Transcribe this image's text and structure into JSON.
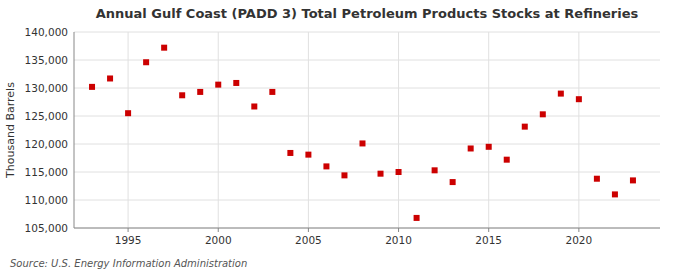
{
  "chart_data": {
    "type": "scatter",
    "title": "Annual Gulf Coast (PADD 3) Total Petroleum Products Stocks at Refineries",
    "y_label": "Thousand Barrels",
    "annotations": [
      "Source: U.S. Energy Information Administration"
    ],
    "x": [
      1993,
      1994,
      1995,
      1996,
      1997,
      1998,
      1999,
      2000,
      2001,
      2002,
      2003,
      2004,
      2005,
      2006,
      2007,
      2008,
      2009,
      2010,
      2011,
      2012,
      2013,
      2014,
      2015,
      2016,
      2017,
      2018,
      2019,
      2020,
      2021,
      2022,
      2023
    ],
    "values": [
      130200,
      131700,
      125500,
      134600,
      137200,
      128700,
      129300,
      130600,
      130900,
      126700,
      129300,
      118400,
      118100,
      116000,
      114400,
      120100,
      114700,
      115000,
      106800,
      115300,
      113200,
      119200,
      119500,
      117200,
      123100,
      125300,
      129000,
      128000,
      113800,
      111000,
      113500
    ],
    "color": "#cc0000",
    "marker": "square",
    "xlim": [
      1992.0,
      2024.5
    ],
    "ylim": [
      105000,
      140000
    ],
    "xticks": [
      1995,
      2000,
      2005,
      2010,
      2015,
      2020
    ],
    "yticks": [
      {
        "value": 105000,
        "label": "105,000"
      },
      {
        "value": 110000,
        "label": "110,000"
      },
      {
        "value": 115000,
        "label": "115,000"
      },
      {
        "value": 120000,
        "label": "120,000"
      },
      {
        "value": 125000,
        "label": "125,000"
      },
      {
        "value": 130000,
        "label": "130,000"
      },
      {
        "value": 135000,
        "label": "135,000"
      },
      {
        "value": 140000,
        "label": "140,000"
      }
    ],
    "grid": true
  }
}
